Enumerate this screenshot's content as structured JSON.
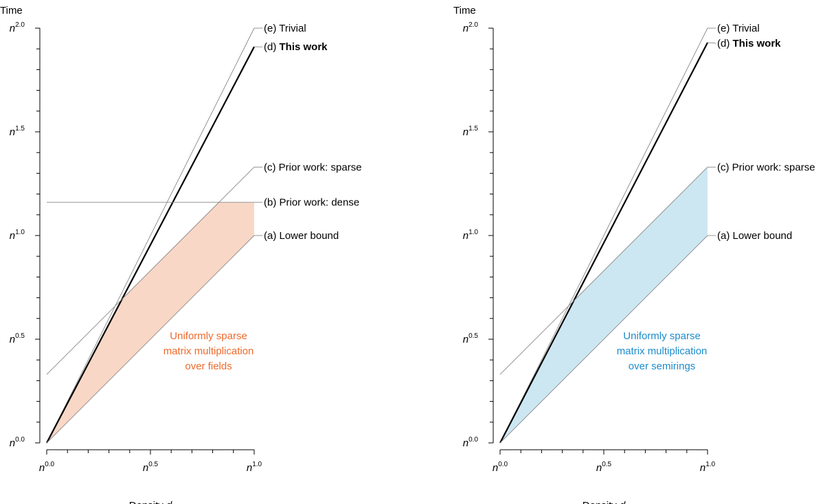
{
  "chart_data": [
    {
      "type": "line",
      "ylabel": "Time",
      "xlabel_prefix": "Density ",
      "xlabel_var": "d",
      "x_ticks": [
        "0.0",
        "0.5",
        "1.0"
      ],
      "y_ticks": [
        "0.0",
        "0.5",
        "1.0",
        "1.5",
        "2.0"
      ],
      "tick_base": "n",
      "xlim": [
        0,
        1
      ],
      "ylim": [
        0,
        2
      ],
      "series": [
        {
          "key": "e",
          "prefix": "(e) ",
          "name": "Trivial",
          "bold": false,
          "x": [
            0,
            1
          ],
          "y": [
            0,
            2
          ],
          "style": "thin"
        },
        {
          "key": "d",
          "prefix": "(d) ",
          "name": "This work",
          "bold": true,
          "x": [
            0,
            1
          ],
          "y": [
            0,
            1.91
          ],
          "style": "thick"
        },
        {
          "key": "c",
          "prefix": "(c) ",
          "name": "Prior work: sparse",
          "bold": false,
          "x": [
            0,
            1
          ],
          "y": [
            0.33,
            1.33
          ],
          "style": "thin"
        },
        {
          "key": "b",
          "prefix": "(b) ",
          "name": "Prior work: dense",
          "bold": false,
          "x": [
            0,
            1
          ],
          "y": [
            1.16,
            1.16
          ],
          "style": "thin"
        },
        {
          "key": "a",
          "prefix": "(a) ",
          "name": "Lower bound",
          "bold": false,
          "x": [
            0,
            1
          ],
          "y": [
            0,
            1
          ],
          "style": "thin"
        }
      ],
      "shaded_region": {
        "color": "#f9d7c6",
        "upper": {
          "x": [
            0,
            0.356,
            0.827,
            1
          ],
          "y": [
            0,
            0.689,
            1.16,
            1.16
          ]
        },
        "lower": {
          "x": [
            0,
            1
          ],
          "y": [
            0,
            1
          ]
        }
      },
      "annotation": {
        "lines": [
          "Uniformly sparse",
          "matrix multiplication",
          "over fields"
        ],
        "color": "#ee6a2c",
        "x": 0.78,
        "y": 0.5
      }
    },
    {
      "type": "line",
      "ylabel": "Time",
      "xlabel_prefix": "Density ",
      "xlabel_var": "d",
      "x_ticks": [
        "0.0",
        "0.5",
        "1.0"
      ],
      "y_ticks": [
        "0.0",
        "0.5",
        "1.0",
        "1.5",
        "2.0"
      ],
      "tick_base": "n",
      "xlim": [
        0,
        1
      ],
      "ylim": [
        0,
        2
      ],
      "series": [
        {
          "key": "e",
          "prefix": "(e) ",
          "name": "Trivial",
          "bold": false,
          "x": [
            0,
            1
          ],
          "y": [
            0,
            2
          ],
          "style": "thin"
        },
        {
          "key": "d",
          "prefix": "(d) ",
          "name": "This work",
          "bold": true,
          "x": [
            0,
            1
          ],
          "y": [
            0,
            1.93
          ],
          "style": "thick"
        },
        {
          "key": "c",
          "prefix": "(c) ",
          "name": "Prior work: sparse",
          "bold": false,
          "x": [
            0,
            1
          ],
          "y": [
            0.33,
            1.33
          ],
          "style": "thin"
        },
        {
          "key": "a",
          "prefix": "(a) ",
          "name": "Lower bound",
          "bold": false,
          "x": [
            0,
            1
          ],
          "y": [
            0,
            1
          ],
          "style": "thin"
        }
      ],
      "shaded_region": {
        "color": "#cce7f2",
        "upper": {
          "x": [
            0,
            0.356,
            1
          ],
          "y": [
            0,
            0.689,
            1.33
          ]
        },
        "lower": {
          "x": [
            0,
            1
          ],
          "y": [
            0,
            1
          ]
        }
      },
      "annotation": {
        "lines": [
          "Uniformly sparse",
          "matrix multiplication",
          "over semirings"
        ],
        "color": "#1c8ccc",
        "x": 0.78,
        "y": 0.5
      }
    }
  ]
}
